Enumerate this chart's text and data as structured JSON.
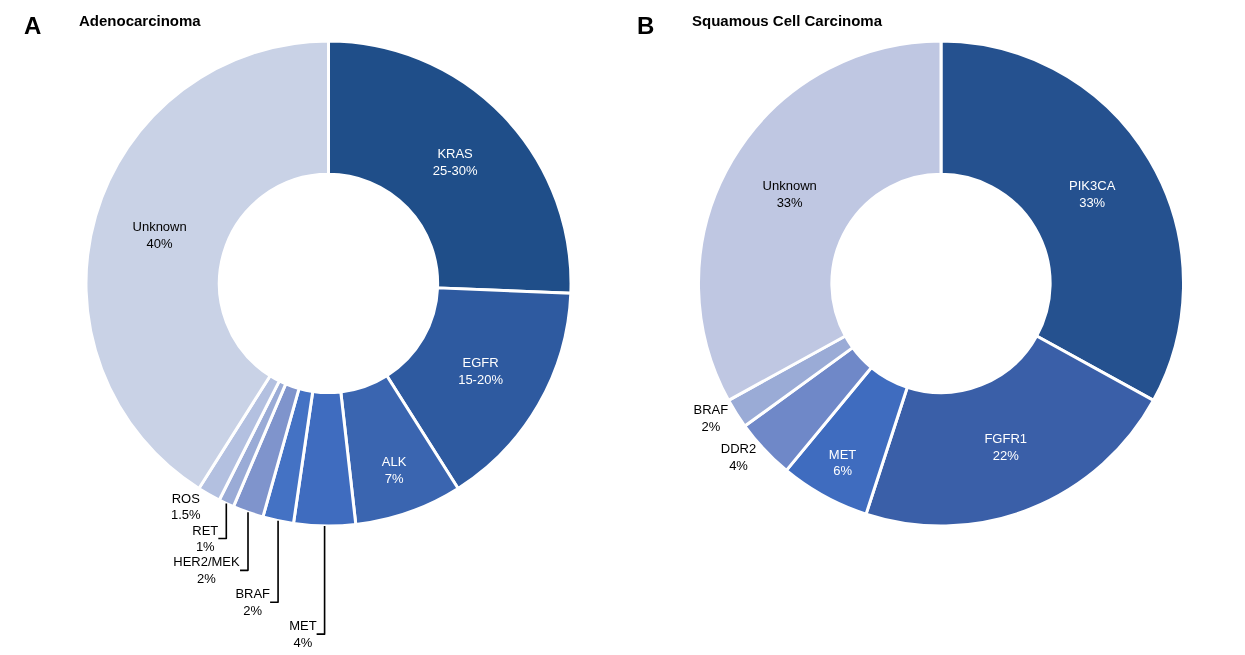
{
  "chart_data": [
    {
      "type": "donut",
      "title": "Adenocarcinoma",
      "annotations": [
        "A"
      ],
      "legend": false,
      "categories": [
        "KRAS",
        "EGFR",
        "ALK",
        "MET",
        "BRAF",
        "HER2/MEK",
        "RET",
        "ROS",
        "Unknown"
      ],
      "values": [
        25,
        15,
        7,
        4,
        2,
        2,
        1,
        1.5,
        40
      ],
      "value_labels": [
        "25-30%",
        "15-20%",
        "7%",
        "4%",
        "2%",
        "2%",
        "1%",
        "1.5%",
        "40%"
      ],
      "colors": [
        "#1f4e89",
        "#2e5aa0",
        "#3a65b0",
        "#3f6cbf",
        "#4472c4",
        "#7f94cc",
        "#9aabd6",
        "#b3c0e0",
        "#c9d2e6"
      ]
    },
    {
      "type": "donut",
      "title": "Squamous Cell Carcinoma",
      "annotations": [
        "B"
      ],
      "legend": false,
      "categories": [
        "PIK3CA",
        "FGFR1",
        "MET",
        "DDR2",
        "BRAF",
        "Unknown"
      ],
      "values": [
        33,
        22,
        6,
        4,
        2,
        33
      ],
      "value_labels": [
        "33%",
        "22%",
        "6%",
        "4%",
        "2%",
        "33%"
      ],
      "colors": [
        "#25518f",
        "#3a5fa8",
        "#3f6cbf",
        "#6f88c8",
        "#9aabd6",
        "#bfc7e2"
      ]
    }
  ]
}
